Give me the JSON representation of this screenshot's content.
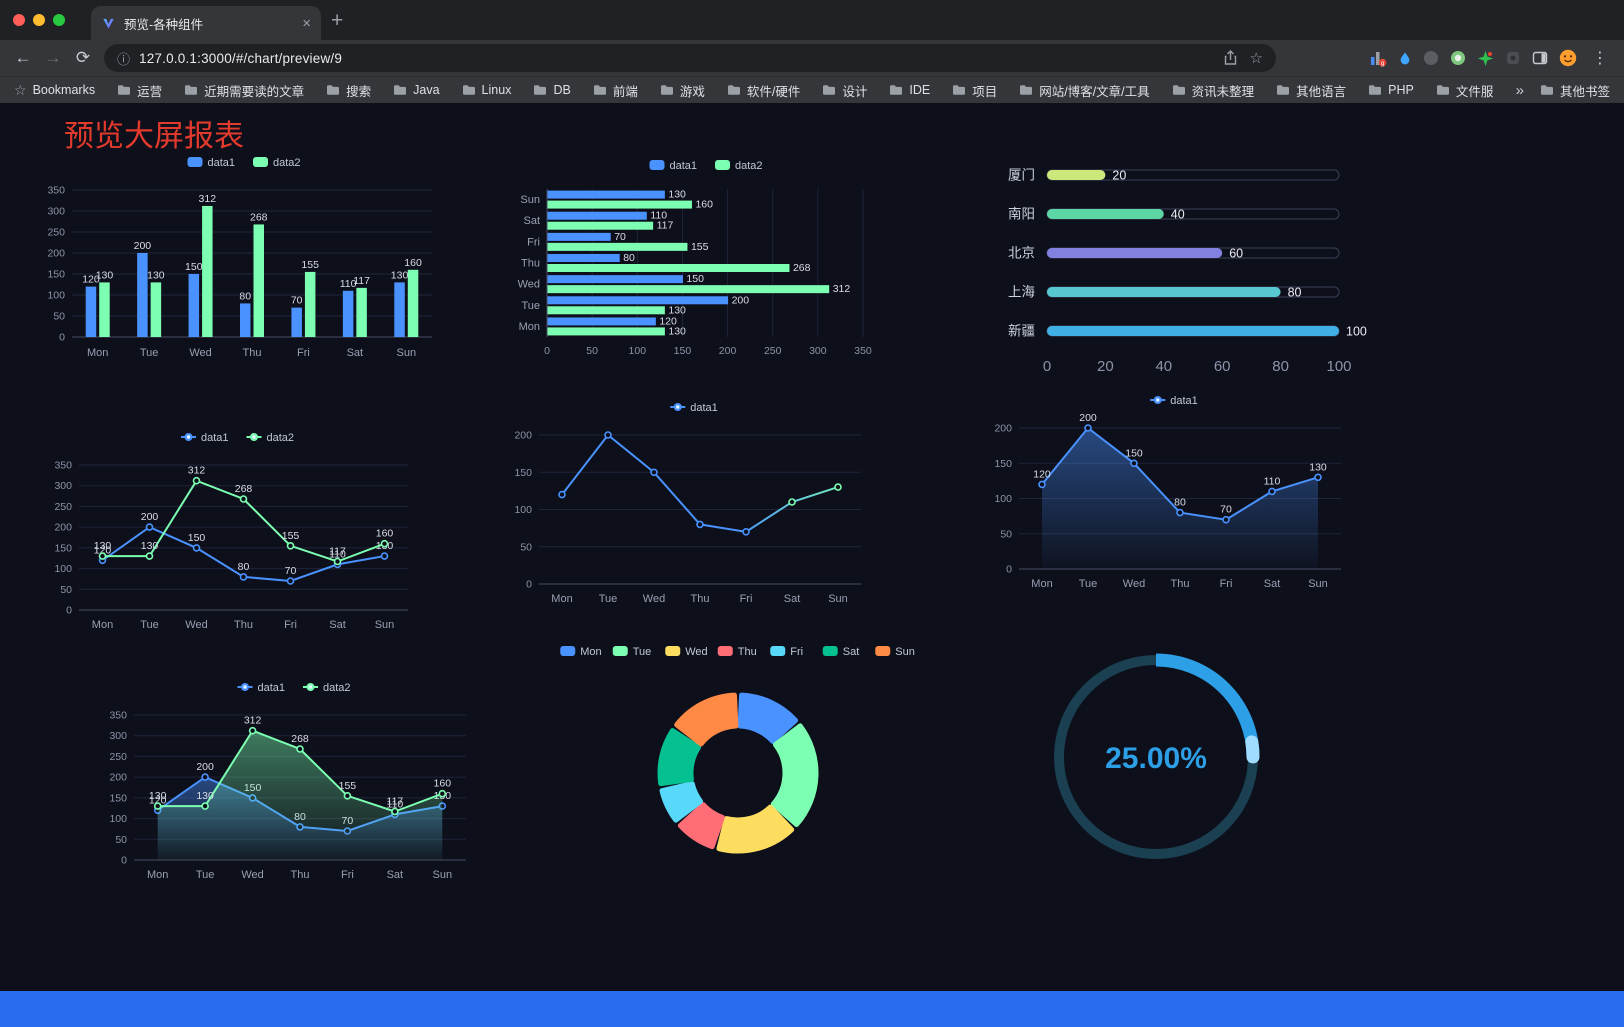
{
  "browser": {
    "tab": {
      "title": "预览-各种组件"
    },
    "url": "127.0.0.1:3000/#/chart/preview/9",
    "bookmarks_label": "Bookmarks",
    "bookmarks": [
      "运营",
      "近期需要读的文章",
      "搜索",
      "Java",
      "Linux",
      "DB",
      "前端",
      "游戏",
      "软件/硬件",
      "设计",
      "IDE",
      "项目",
      "网站/博客/文章/工具",
      "资讯未整理",
      "其他语言",
      "PHP",
      "文件服务器"
    ],
    "other_bookmarks": "其他书签"
  },
  "icons": {
    "back": "←",
    "forward": "→",
    "reload": "⟳",
    "close": "×",
    "new_tab": "+",
    "star": "☆",
    "info": "ⓘ",
    "menu": "⋮",
    "overflow": "»"
  },
  "page": {
    "title": "预览大屏报表"
  },
  "chart_data": [
    {
      "id": "chart-bar-grouped",
      "type": "bar",
      "categories": [
        "Mon",
        "Tue",
        "Wed",
        "Thu",
        "Fri",
        "Sat",
        "Sun"
      ],
      "series": [
        {
          "name": "data1",
          "color": "#4992ff",
          "values": [
            120,
            200,
            150,
            80,
            70,
            110,
            130
          ]
        },
        {
          "name": "data2",
          "color": "#7cffb2",
          "values": [
            130,
            130,
            312,
            268,
            155,
            117,
            160
          ]
        }
      ],
      "ylim": [
        0,
        350
      ],
      "yticks": [
        0,
        50,
        100,
        150,
        200,
        250,
        300,
        350
      ]
    },
    {
      "id": "chart-bar-horizontal",
      "type": "bar-horizontal",
      "categories": [
        "Mon",
        "Tue",
        "Wed",
        "Thu",
        "Fri",
        "Sat",
        "Sun"
      ],
      "series": [
        {
          "name": "data1",
          "color": "#4992ff",
          "values": [
            120,
            200,
            150,
            80,
            70,
            110,
            130
          ]
        },
        {
          "name": "data2",
          "color": "#7cffb2",
          "values": [
            130,
            130,
            312,
            268,
            155,
            117,
            160
          ]
        }
      ],
      "xlim": [
        0,
        350
      ],
      "xticks": [
        0,
        50,
        100,
        150,
        200,
        250,
        300,
        350
      ]
    },
    {
      "id": "chart-capsule",
      "type": "bar-capsule",
      "items": [
        {
          "label": "厦门",
          "value": 20,
          "color": "#cde87a"
        },
        {
          "label": "南阳",
          "value": 40,
          "color": "#5dd6a6"
        },
        {
          "label": "北京",
          "value": 60,
          "color": "#8281e0"
        },
        {
          "label": "上海",
          "value": 80,
          "color": "#57c7d1"
        },
        {
          "label": "新疆",
          "value": 100,
          "color": "#3fb0e5"
        }
      ],
      "xlim": [
        0,
        100
      ],
      "xticks": [
        0,
        20,
        40,
        60,
        80,
        100
      ]
    },
    {
      "id": "chart-line-two",
      "type": "line",
      "categories": [
        "Mon",
        "Tue",
        "Wed",
        "Thu",
        "Fri",
        "Sat",
        "Sun"
      ],
      "series": [
        {
          "name": "data1",
          "color": "#4992ff",
          "values": [
            120,
            200,
            150,
            80,
            70,
            110,
            130
          ]
        },
        {
          "name": "data2",
          "color": "#7cffb2",
          "values": [
            130,
            130,
            312,
            268,
            155,
            117,
            160
          ]
        }
      ],
      "ylim": [
        0,
        350
      ],
      "yticks": [
        0,
        50,
        100,
        150,
        200,
        250,
        300,
        350
      ],
      "show_labels": true
    },
    {
      "id": "chart-line-gradient",
      "type": "line",
      "categories": [
        "Mon",
        "Tue",
        "Wed",
        "Thu",
        "Fri",
        "Sat",
        "Sun"
      ],
      "series": [
        {
          "name": "data1",
          "color": "#4992ff",
          "color_end": "#7cffb2",
          "values": [
            120,
            200,
            150,
            80,
            70,
            110,
            130
          ]
        }
      ],
      "ylim": [
        0,
        200
      ],
      "yticks": [
        0,
        50,
        100,
        150,
        200
      ],
      "show_labels": false
    },
    {
      "id": "chart-area",
      "type": "line",
      "categories": [
        "Mon",
        "Tue",
        "Wed",
        "Thu",
        "Fri",
        "Sat",
        "Sun"
      ],
      "series": [
        {
          "name": "data1",
          "color": "#4992ff",
          "fill": true,
          "values": [
            120,
            200,
            150,
            80,
            70,
            110,
            130
          ]
        }
      ],
      "ylim": [
        0,
        200
      ],
      "yticks": [
        0,
        50,
        100,
        150,
        200
      ],
      "show_labels": true
    },
    {
      "id": "chart-line-area-two",
      "type": "line",
      "categories": [
        "Mon",
        "Tue",
        "Wed",
        "Thu",
        "Fri",
        "Sat",
        "Sun"
      ],
      "series": [
        {
          "name": "data1",
          "color": "#4992ff",
          "fill": true,
          "values": [
            120,
            200,
            150,
            80,
            70,
            110,
            130
          ]
        },
        {
          "name": "data2",
          "color": "#7cffb2",
          "fill": true,
          "values": [
            130,
            130,
            312,
            268,
            155,
            117,
            160
          ]
        }
      ],
      "ylim": [
        0,
        350
      ],
      "yticks": [
        0,
        50,
        100,
        150,
        200,
        250,
        300,
        350
      ],
      "show_labels": true
    },
    {
      "id": "chart-donut",
      "type": "pie",
      "items": [
        {
          "name": "Mon",
          "value": 120,
          "color": "#4992ff"
        },
        {
          "name": "Tue",
          "value": 200,
          "color": "#7cffb2"
        },
        {
          "name": "Wed",
          "value": 150,
          "color": "#fddd60"
        },
        {
          "name": "Thu",
          "value": 80,
          "color": "#ff6e76"
        },
        {
          "name": "Fri",
          "value": 70,
          "color": "#58d9f9"
        },
        {
          "name": "Sat",
          "value": 110,
          "color": "#05c091"
        },
        {
          "name": "Sun",
          "value": 130,
          "color": "#ff8a45"
        }
      ]
    },
    {
      "id": "chart-gauge",
      "type": "gauge",
      "value": 25,
      "label": "25.00%",
      "bar_color": "#2d9fe6",
      "tip_color": "#9fdcff",
      "track_color": "#1a4051",
      "text_color": "#2d9fe6"
    }
  ]
}
